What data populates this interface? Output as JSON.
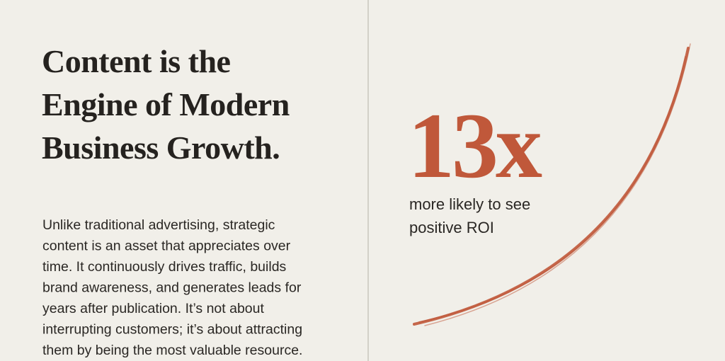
{
  "heading": {
    "lines": [
      "Content is the",
      "Engine of Modern",
      "Business Growth."
    ]
  },
  "body": {
    "lines": [
      "Unlike traditional advertising, strategic",
      "content is an asset that appreciates over",
      "time. It continuously drives traffic, builds",
      "brand awareness, and generates leads for",
      "years after publication. It’s not about",
      "interrupting customers; it’s about attracting",
      "them by being the most valuable resource."
    ]
  },
  "stat": {
    "value": "13x",
    "caption": [
      "more likely to see",
      "positive ROI"
    ]
  }
}
